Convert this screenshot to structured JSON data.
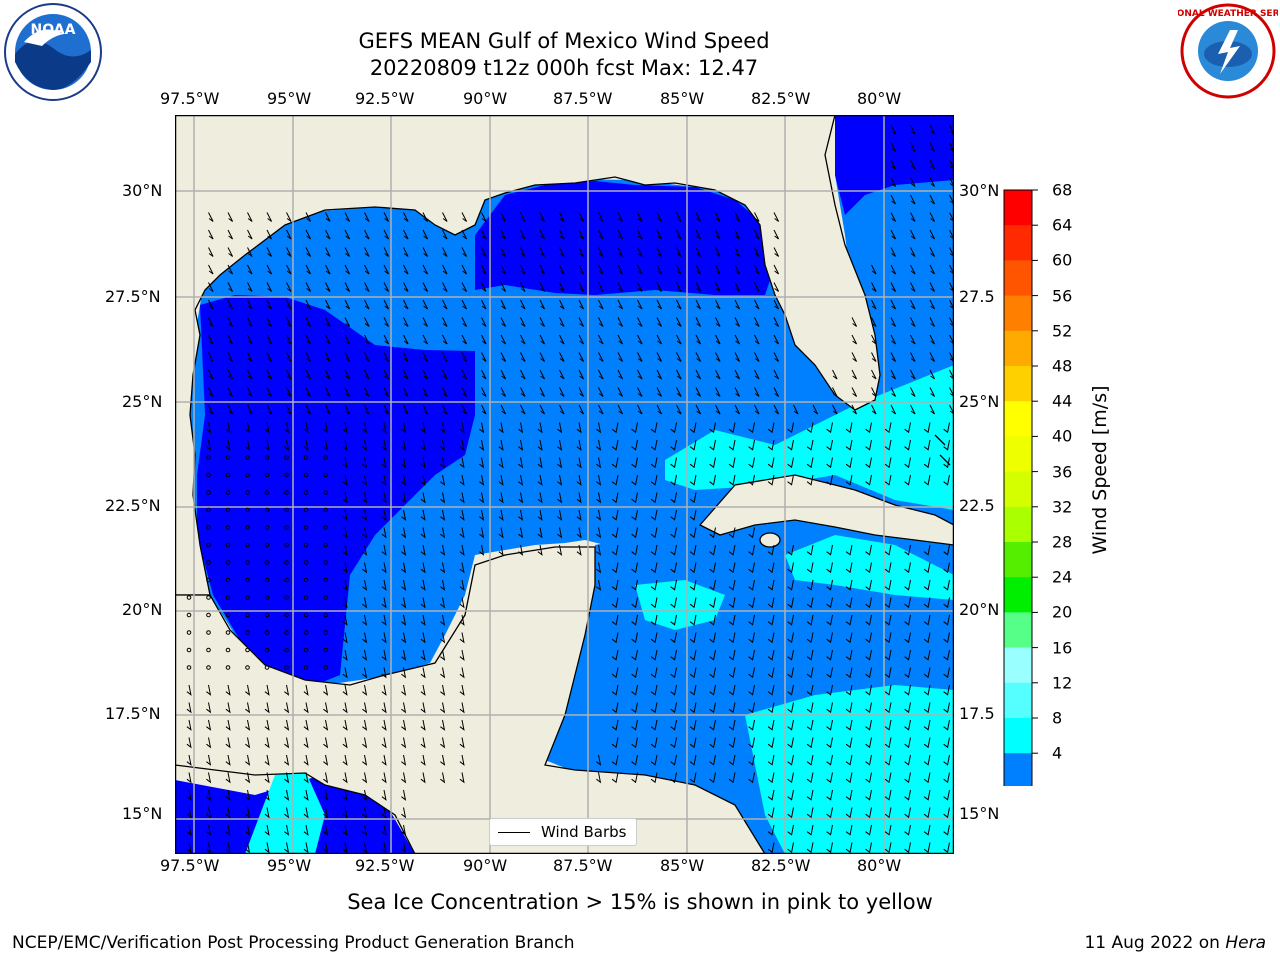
{
  "title": {
    "line1": "GEFS MEAN Gulf of Mexico Wind Speed",
    "line2": "20220809 t12z 000h fcst   Max: 12.47"
  },
  "axes": {
    "lon_labels": [
      "97.5°W",
      "95°W",
      "92.5°W",
      "90°W",
      "87.5°W",
      "85°W",
      "82.5°W",
      "80°W"
    ],
    "lat_labels_left": [
      "30°N",
      "27.5°N",
      "25°N",
      "22.5°N",
      "20°N",
      "17.5°N",
      "15°N"
    ],
    "lat_labels_right": [
      "30°N",
      "27.5",
      "25°N",
      "22.5",
      "20°N",
      "17.5",
      "15°N"
    ]
  },
  "legend": {
    "label": "Wind Barbs"
  },
  "colorbar": {
    "label": "Wind Speed [m/s]",
    "ticks": [
      "68",
      "64",
      "60",
      "56",
      "52",
      "48",
      "44",
      "40",
      "36",
      "32",
      "28",
      "24",
      "20",
      "16",
      "12",
      "8",
      "4"
    ],
    "colors": [
      "#ff0000",
      "#ff2a00",
      "#ff5500",
      "#ff8000",
      "#ffaa00",
      "#ffd000",
      "#ffff00",
      "#eeff00",
      "#d4ff00",
      "#aaff00",
      "#55ee00",
      "#00ee00",
      "#55ff88",
      "#99ffff",
      "#55ffff",
      "#00ffff",
      "#0080ff"
    ],
    "extend_color": "#0000ff"
  },
  "map_colors": {
    "land": "#efedde",
    "level1": "#0000ff",
    "level2": "#0080ff",
    "level3": "#00ffff"
  },
  "note": "Sea Ice Concentration > 15% is shown in pink to yellow",
  "footer": {
    "left": "NCEP/EMC/Verification Post Processing Product Generation Branch",
    "date": "11 Aug 2022 on",
    "machine": "Hera"
  },
  "logos": {
    "noaa": "NOAA",
    "nws": "NATIONAL WEATHER SERVICE"
  }
}
